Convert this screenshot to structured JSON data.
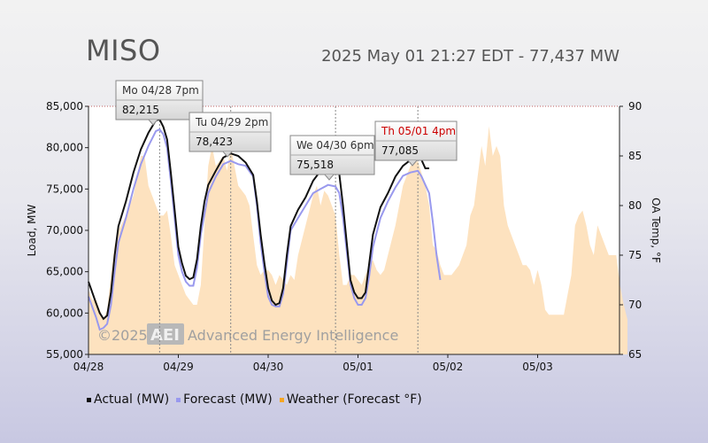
{
  "header": {
    "title": "MISO",
    "subtitle": "2025 May 01 21:27 EDT - 77,437 MW"
  },
  "watermark": {
    "year": "©2025",
    "logo": "AEI",
    "company": "Advanced Energy Intelligence"
  },
  "legend": {
    "items": [
      {
        "label": "Actual (MW)",
        "color": "#111111"
      },
      {
        "label": "Forecast (MW)",
        "color": "#9999ee"
      },
      {
        "label": "Weather (Forecast °F)",
        "color": "#f5a623"
      }
    ]
  },
  "tooltips": [
    {
      "date": "Mo 04/28 7pm",
      "value": "82,215",
      "red": false
    },
    {
      "date": "Tu 04/29 2pm",
      "value": "78,423",
      "red": false
    },
    {
      "date": "We 04/30 6pm",
      "value": "75,518",
      "red": false
    },
    {
      "date": "Th 05/01 4pm",
      "value": "77,085",
      "red": true
    }
  ],
  "chart_data": {
    "type": "line",
    "x_tick_labels": [
      "04/28",
      "04/29",
      "04/30",
      "05/01",
      "05/02",
      "05/03"
    ],
    "ylabel": "Load, MW",
    "y2label": "OA Temp, °F",
    "ylim": [
      55000,
      85000
    ],
    "y_tick_labels": [
      "85,000",
      "80,000",
      "75,000",
      "70,000",
      "65,000",
      "60,000",
      "55,000"
    ],
    "y2lim": [
      65,
      90
    ],
    "y2_tick_labels": [
      "90",
      "85",
      "80",
      "75",
      "70",
      "65"
    ],
    "x_unit": "hours since 04/28 00:00",
    "series": [
      {
        "name": "Actual (MW)",
        "color": "#111111",
        "points": [
          [
            0,
            63800
          ],
          [
            2,
            61200
          ],
          [
            3,
            60000
          ],
          [
            4,
            59300
          ],
          [
            5,
            59700
          ],
          [
            6,
            62500
          ],
          [
            7,
            67000
          ],
          [
            8,
            70500
          ],
          [
            10,
            73500
          ],
          [
            12,
            77000
          ],
          [
            14,
            79800
          ],
          [
            16,
            81800
          ],
          [
            18,
            83300
          ],
          [
            19,
            83400
          ],
          [
            20,
            82500
          ],
          [
            21,
            81000
          ],
          [
            22,
            77000
          ],
          [
            23,
            72500
          ],
          [
            24,
            68000
          ],
          [
            25,
            66000
          ],
          [
            26,
            64500
          ],
          [
            27,
            64100
          ],
          [
            28,
            64300
          ],
          [
            29,
            66500
          ],
          [
            30,
            70500
          ],
          [
            31,
            73500
          ],
          [
            32,
            75500
          ],
          [
            34,
            77200
          ],
          [
            36,
            78800
          ],
          [
            38,
            79300
          ],
          [
            40,
            79000
          ],
          [
            42,
            78200
          ],
          [
            44,
            76700
          ],
          [
            45,
            73500
          ],
          [
            46,
            69500
          ],
          [
            47,
            66000
          ],
          [
            48,
            63000
          ],
          [
            49,
            61500
          ],
          [
            50,
            61000
          ],
          [
            51,
            61200
          ],
          [
            52,
            63000
          ],
          [
            53,
            67000
          ],
          [
            54,
            70500
          ],
          [
            56,
            72500
          ],
          [
            58,
            74000
          ],
          [
            60,
            76000
          ],
          [
            62,
            77200
          ],
          [
            64,
            77500
          ],
          [
            66,
            77000
          ],
          [
            67,
            76800
          ],
          [
            68,
            73000
          ],
          [
            69,
            68500
          ],
          [
            70,
            64000
          ],
          [
            71,
            62500
          ],
          [
            72,
            61800
          ],
          [
            73,
            61800
          ],
          [
            74,
            62500
          ],
          [
            75,
            66000
          ],
          [
            76,
            69500
          ],
          [
            78,
            72800
          ],
          [
            80,
            74500
          ],
          [
            82,
            76500
          ],
          [
            84,
            77800
          ],
          [
            86,
            78500
          ],
          [
            88,
            79200
          ],
          [
            89,
            78500
          ],
          [
            90,
            77500
          ],
          [
            91,
            77500
          ]
        ]
      },
      {
        "name": "Forecast (MW)",
        "color": "#9999ee",
        "points": [
          [
            0,
            62000
          ],
          [
            2,
            59500
          ],
          [
            3,
            58000
          ],
          [
            4,
            58200
          ],
          [
            5,
            58700
          ],
          [
            6,
            61000
          ],
          [
            7,
            65000
          ],
          [
            8,
            68500
          ],
          [
            10,
            71500
          ],
          [
            12,
            75000
          ],
          [
            14,
            78000
          ],
          [
            16,
            80200
          ],
          [
            18,
            82000
          ],
          [
            19,
            82200
          ],
          [
            20,
            81600
          ],
          [
            21,
            80000
          ],
          [
            22,
            76000
          ],
          [
            23,
            71500
          ],
          [
            24,
            67000
          ],
          [
            25,
            65000
          ],
          [
            26,
            63800
          ],
          [
            27,
            63300
          ],
          [
            28,
            63300
          ],
          [
            29,
            65500
          ],
          [
            30,
            69500
          ],
          [
            31,
            72000
          ],
          [
            32,
            74500
          ],
          [
            34,
            76500
          ],
          [
            36,
            78000
          ],
          [
            38,
            78400
          ],
          [
            40,
            78000
          ],
          [
            42,
            77800
          ],
          [
            44,
            76500
          ],
          [
            45,
            73000
          ],
          [
            46,
            68500
          ],
          [
            47,
            65000
          ],
          [
            48,
            62000
          ],
          [
            49,
            61000
          ],
          [
            50,
            60800
          ],
          [
            51,
            60800
          ],
          [
            52,
            62300
          ],
          [
            53,
            66000
          ],
          [
            54,
            70000
          ],
          [
            56,
            71500
          ],
          [
            58,
            73000
          ],
          [
            60,
            74500
          ],
          [
            62,
            75000
          ],
          [
            64,
            75500
          ],
          [
            66,
            75300
          ],
          [
            67,
            74500
          ],
          [
            68,
            71500
          ],
          [
            69,
            67500
          ],
          [
            70,
            63500
          ],
          [
            71,
            61800
          ],
          [
            72,
            61000
          ],
          [
            73,
            61000
          ],
          [
            74,
            61800
          ],
          [
            75,
            64500
          ],
          [
            76,
            68000
          ],
          [
            78,
            71500
          ],
          [
            80,
            73500
          ],
          [
            82,
            75200
          ],
          [
            84,
            76600
          ],
          [
            86,
            77000
          ],
          [
            88,
            77200
          ],
          [
            89,
            76500
          ],
          [
            90,
            75500
          ],
          [
            91,
            74500
          ],
          [
            92,
            71000
          ],
          [
            93,
            67000
          ],
          [
            94,
            64000
          ]
        ]
      },
      {
        "name": "Weather (Forecast °F)",
        "color": "#fde2bf",
        "points": [
          [
            0,
            71.5
          ],
          [
            1,
            70.5
          ],
          [
            2,
            70.5
          ],
          [
            3,
            69.5
          ],
          [
            4,
            68.5
          ],
          [
            5,
            69.5
          ],
          [
            6,
            73
          ],
          [
            7,
            76
          ],
          [
            8,
            77.5
          ],
          [
            10,
            79
          ],
          [
            12,
            81
          ],
          [
            14,
            85
          ],
          [
            15,
            85
          ],
          [
            16,
            82
          ],
          [
            17,
            81
          ],
          [
            18,
            80
          ],
          [
            19,
            79
          ],
          [
            20,
            79
          ],
          [
            21,
            79.5
          ],
          [
            22,
            77
          ],
          [
            23,
            74
          ],
          [
            24,
            73
          ],
          [
            25,
            72
          ],
          [
            26,
            71
          ],
          [
            27,
            70.5
          ],
          [
            28,
            70
          ],
          [
            29,
            70
          ],
          [
            30,
            72
          ],
          [
            31,
            78
          ],
          [
            32,
            84
          ],
          [
            33,
            86
          ],
          [
            34,
            84
          ],
          [
            36,
            85
          ],
          [
            37,
            83.5
          ],
          [
            38,
            86
          ],
          [
            39,
            84
          ],
          [
            40,
            82
          ],
          [
            42,
            81
          ],
          [
            43,
            80
          ],
          [
            44,
            77
          ],
          [
            45,
            74
          ],
          [
            46,
            73
          ],
          [
            47,
            73.5
          ],
          [
            48,
            73.5
          ],
          [
            49,
            73
          ],
          [
            50,
            72
          ],
          [
            51,
            73
          ],
          [
            52,
            72.5
          ],
          [
            53,
            72
          ],
          [
            54,
            73
          ],
          [
            55,
            72.5
          ],
          [
            56,
            75
          ],
          [
            58,
            78
          ],
          [
            60,
            81
          ],
          [
            61,
            82
          ],
          [
            62,
            80
          ],
          [
            63,
            81.5
          ],
          [
            64,
            81
          ],
          [
            65,
            80
          ],
          [
            66,
            79
          ],
          [
            67,
            75
          ],
          [
            68,
            72
          ],
          [
            69,
            72
          ],
          [
            70,
            73
          ],
          [
            71,
            73
          ],
          [
            72,
            72.5
          ],
          [
            73,
            72
          ],
          [
            74,
            73
          ],
          [
            75,
            74
          ],
          [
            76,
            74.5
          ],
          [
            77,
            73.5
          ],
          [
            78,
            73
          ],
          [
            79,
            73.5
          ],
          [
            80,
            75
          ],
          [
            82,
            78
          ],
          [
            84,
            82
          ],
          [
            86,
            84
          ],
          [
            88,
            84.5
          ],
          [
            90,
            82
          ],
          [
            91,
            80
          ],
          [
            92,
            76
          ],
          [
            93,
            75.5
          ],
          [
            94,
            74
          ],
          [
            95,
            73
          ],
          [
            96,
            73
          ],
          [
            97,
            73
          ],
          [
            98,
            73.5
          ],
          [
            99,
            74
          ],
          [
            100,
            75
          ],
          [
            101,
            76
          ],
          [
            102,
            79
          ],
          [
            103,
            80
          ],
          [
            104,
            83
          ],
          [
            105,
            86
          ],
          [
            106,
            84
          ],
          [
            107,
            88
          ],
          [
            108,
            85
          ],
          [
            109,
            86
          ],
          [
            110,
            85
          ],
          [
            111,
            80
          ],
          [
            112,
            78
          ],
          [
            113,
            77
          ],
          [
            114,
            76
          ],
          [
            115,
            75
          ],
          [
            116,
            74
          ],
          [
            117,
            74
          ],
          [
            118,
            73.5
          ],
          [
            119,
            72
          ],
          [
            120,
            73.5
          ],
          [
            121,
            72
          ],
          [
            122,
            69.5
          ],
          [
            123,
            69
          ],
          [
            124,
            69
          ],
          [
            125,
            69
          ],
          [
            126,
            69
          ],
          [
            127,
            69
          ],
          [
            128,
            71
          ],
          [
            129,
            73
          ],
          [
            130,
            78
          ],
          [
            131,
            79
          ],
          [
            132,
            79.5
          ],
          [
            133,
            78
          ],
          [
            134,
            76
          ],
          [
            135,
            75
          ],
          [
            136,
            78
          ],
          [
            137,
            77
          ],
          [
            138,
            76
          ],
          [
            139,
            75
          ],
          [
            140,
            75
          ],
          [
            141,
            75
          ],
          [
            142,
            72
          ],
          [
            143,
            70
          ],
          [
            144,
            68.5
          ]
        ]
      }
    ],
    "x_axis_vertical_markers_hours": [
      19,
      38,
      66,
      88
    ],
    "grid": false,
    "legend_position": "bottom-left"
  }
}
